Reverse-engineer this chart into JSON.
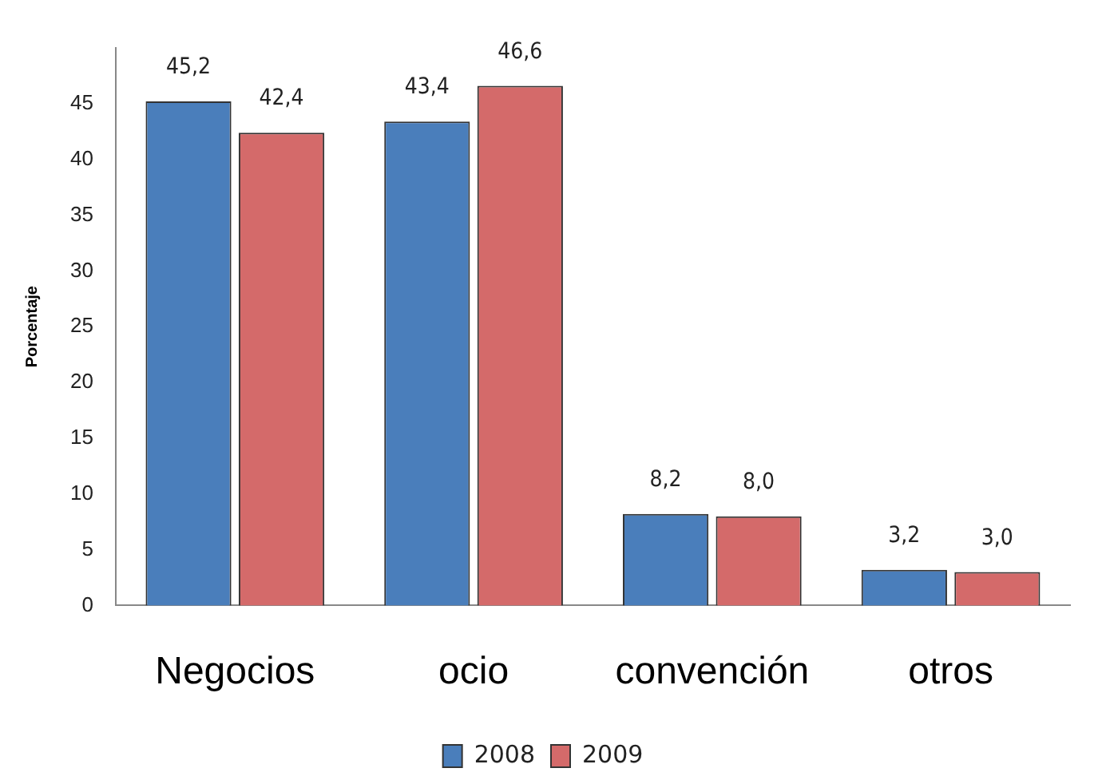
{
  "chart_data": {
    "type": "bar",
    "ylabel": "Porcentaje",
    "categories": [
      "Negocios",
      "ocio",
      "convención",
      "otros"
    ],
    "series": [
      {
        "name": "2008",
        "color": "#4a7ebb",
        "values": [
          45.2,
          43.4,
          8.2,
          3.2
        ],
        "value_labels": [
          "45,2",
          "43,4",
          "8,2",
          "3,2"
        ]
      },
      {
        "name": "2009",
        "color": "#d46a6a",
        "values": [
          42.4,
          46.6,
          8.0,
          3.0
        ],
        "value_labels": [
          "42,4",
          "46,6",
          "8,0",
          "3,0"
        ]
      }
    ],
    "ylim": [
      0,
      50
    ],
    "yticks": [
      0,
      5,
      10,
      15,
      20,
      25,
      30,
      35,
      40,
      45
    ],
    "grid": false,
    "legend": "bottom"
  }
}
